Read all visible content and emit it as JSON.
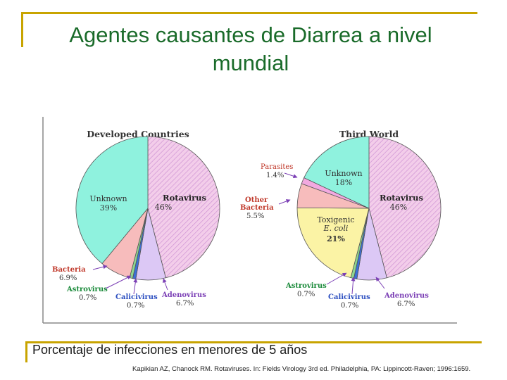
{
  "slide": {
    "title_line1": "Agentes causantes de  Diarrea a nivel",
    "title_line2": "mundial",
    "caption": "Porcentaje de infecciones en menores de 5 años",
    "citation": "Kapikian AZ, Chanock RM. Rotaviruses. In: Fields Virology 3rd ed. Philadelphia, PA: Lippincott-Raven; 1996:1659."
  },
  "colors": {
    "title": "#1a6b2a",
    "rule": "#c8a400",
    "rotavirus": "#f3cdea",
    "unknown": "#8ff2de",
    "toxigenic_ecoli": "#fbf3a5",
    "other_bacteria": "#f7bcbc",
    "bacteria": "#f7bcbc",
    "parasites": "#f2a9e0",
    "astrovirus": "#8fd68f",
    "calicivirus": "#3b6fd6",
    "adenovirus": "#dcc8f5",
    "arrow": "#7b3fb5"
  },
  "chart_data": [
    {
      "type": "pie",
      "title": "Developed Countries",
      "unit": "%",
      "slices": [
        {
          "label": "Rotavirus",
          "value": 46,
          "display": "46%"
        },
        {
          "label": "Adenovirus",
          "value": 6.7,
          "display": "6.7%"
        },
        {
          "label": "Calicivirus",
          "value": 0.7,
          "display": "0.7%"
        },
        {
          "label": "Astrovirus",
          "value": 0.7,
          "display": "0.7%"
        },
        {
          "label": "Bacteria",
          "value": 6.9,
          "display": "6.9%"
        },
        {
          "label": "Unknown",
          "value": 39,
          "display": "39%"
        }
      ]
    },
    {
      "type": "pie",
      "title": "Third World",
      "unit": "%",
      "slices": [
        {
          "label": "Rotavirus",
          "value": 46,
          "display": "46%"
        },
        {
          "label": "Adenovirus",
          "value": 6.7,
          "display": "6.7%"
        },
        {
          "label": "Calicivirus",
          "value": 0.7,
          "display": "0.7%"
        },
        {
          "label": "Astrovirus",
          "value": 0.7,
          "display": "0.7%"
        },
        {
          "label": "Toxigenic E. coli",
          "line1": "Toxigenic",
          "line2": "E. coli",
          "value": 21,
          "display": "21%"
        },
        {
          "label": "Other Bacteria",
          "line1": "Other",
          "line2": "Bacteria",
          "value": 5.5,
          "display": "5.5%"
        },
        {
          "label": "Parasites",
          "value": 1.4,
          "display": "1.4%"
        },
        {
          "label": "Unknown",
          "value": 18,
          "display": "18%"
        }
      ]
    }
  ]
}
